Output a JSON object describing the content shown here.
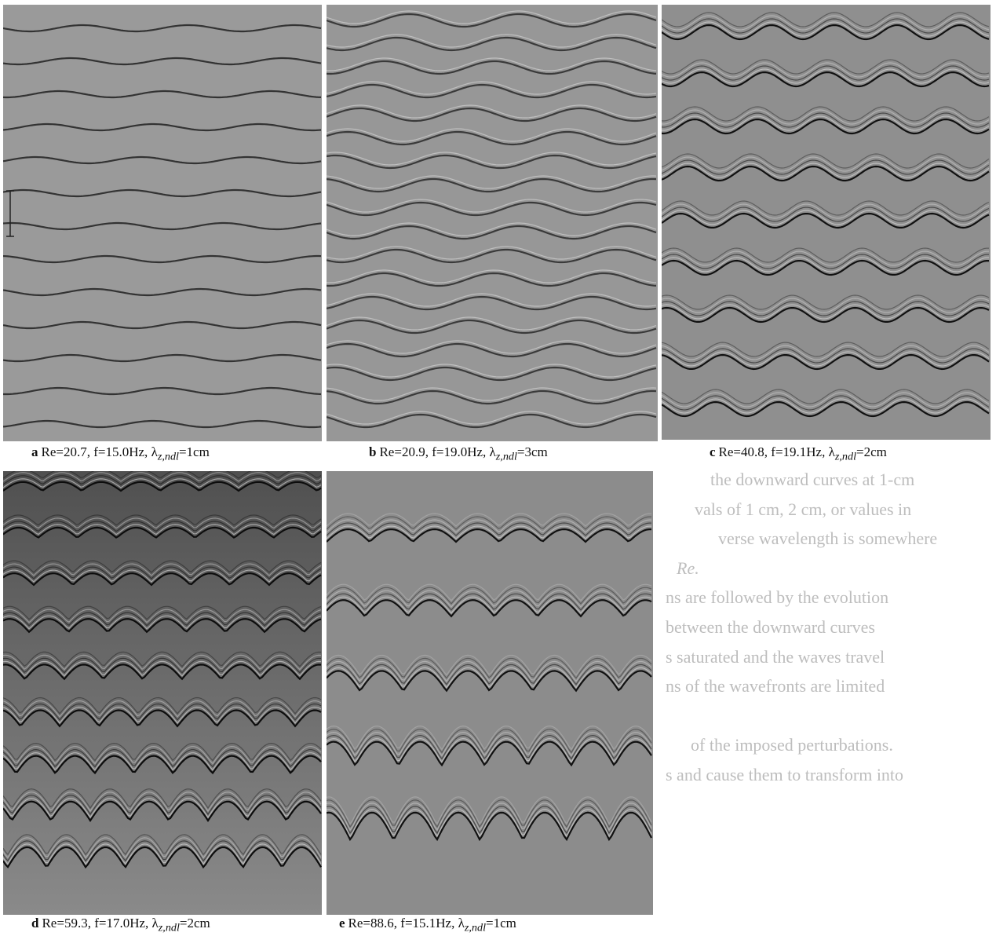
{
  "figure": {
    "panels": [
      {
        "label": "a",
        "re": "Re=20.7, ",
        "f": "f=15.0Hz, ",
        "lambda": "λ",
        "sub": "z,ndl",
        "eq": "=1cm"
      },
      {
        "label": "b",
        "re": "Re=20.9, ",
        "f": "f=19.0Hz, ",
        "lambda": "λ",
        "sub": "z,ndl",
        "eq": "=3cm"
      },
      {
        "label": "c",
        "re": "Re=40.8, ",
        "f": "f=19.1Hz, ",
        "lambda": "λ",
        "sub": "z,ndl",
        "eq": "=2cm"
      },
      {
        "label": "d",
        "re": "Re=59.3, ",
        "f": "f=17.0Hz, ",
        "lambda": "λ",
        "sub": "z,ndl",
        "eq": "=2cm"
      },
      {
        "label": "e",
        "re": "Re=88.6, ",
        "f": "f=15.1Hz, ",
        "lambda": "λ",
        "sub": "z,ndl",
        "eq": "=1cm"
      }
    ]
  },
  "bleed_text": [
    "the downward curves at 1-cm",
    "vals of 1 cm, 2 cm, or values in",
    "verse wavelength is somewhere",
    "Re.",
    "ns are followed by the evolution",
    "between the downward curves",
    "s saturated and the waves travel",
    "ns of the wavefronts are limited",
    "of the imposed perturbations.",
    "s and cause them to transform into"
  ]
}
